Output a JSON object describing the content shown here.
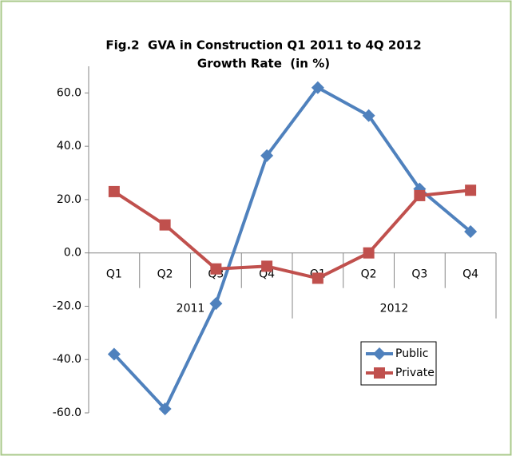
{
  "chart_data": {
    "type": "line",
    "title": "Fig.2  GVA in Construction Q1 2011 to 4Q 2012",
    "subtitle": "Growth Rate  (in %)",
    "categories": [
      "Q1",
      "Q2",
      "Q3",
      "Q4",
      "Q1",
      "Q2",
      "Q3",
      "Q4"
    ],
    "category_groups": [
      "2011",
      "2012"
    ],
    "series": [
      {
        "name": "Public",
        "color": "#4f81bd",
        "marker": "diamond",
        "values": [
          -38,
          -58.5,
          -19,
          36.5,
          62,
          51.5,
          24,
          8
        ]
      },
      {
        "name": "Private",
        "color": "#c0504d",
        "marker": "square",
        "values": [
          23,
          10.5,
          -6,
          -5,
          -9.5,
          0,
          21.5,
          23.5
        ]
      }
    ],
    "ylim": [
      -60,
      70
    ],
    "yticks": [
      {
        "value": -60,
        "label": "-60.0"
      },
      {
        "value": -40,
        "label": "-40.0"
      },
      {
        "value": -20,
        "label": "-20.0"
      },
      {
        "value": 0,
        "label": "0.0"
      },
      {
        "value": 20,
        "label": "20.0"
      },
      {
        "value": 40,
        "label": "40.0"
      },
      {
        "value": 60,
        "label": "60.0"
      }
    ],
    "grid": false,
    "legend": "right"
  }
}
